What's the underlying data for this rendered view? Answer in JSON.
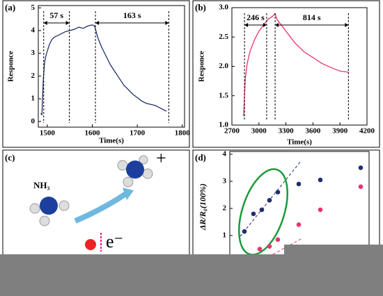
{
  "chart_data": [
    {
      "type": "line",
      "panel": "(a)",
      "xlabel": "Time(s)",
      "ylabel": "Responce",
      "color": "#1f2f6e",
      "x": [
        1485,
        1488,
        1491,
        1494,
        1497,
        1500,
        1505,
        1510,
        1515,
        1520,
        1530,
        1540,
        1550,
        1560,
        1570,
        1580,
        1590,
        1600,
        1605,
        1608,
        1612,
        1620,
        1630,
        1640,
        1650,
        1660,
        1670,
        1680,
        1690,
        1700,
        1710,
        1720,
        1730,
        1740,
        1750,
        1760,
        1765
      ],
      "values": [
        0.35,
        0.3,
        1.8,
        2.6,
        2.9,
        3.1,
        3.4,
        3.6,
        3.7,
        3.75,
        3.85,
        3.95,
        4.0,
        4.05,
        4.15,
        4.1,
        4.2,
        4.25,
        4.2,
        4.0,
        3.7,
        3.3,
        2.9,
        2.5,
        2.2,
        1.9,
        1.6,
        1.4,
        1.2,
        1.05,
        0.9,
        0.8,
        0.75,
        0.7,
        0.6,
        0.5,
        0.45
      ],
      "xlim": [
        1480,
        1805
      ],
      "ylim": [
        -0.25,
        5.1
      ],
      "xticks": [
        1500,
        1600,
        1700,
        1800
      ],
      "yticks": [
        0,
        1,
        2,
        3,
        4,
        5
      ],
      "annotations": [
        {
          "text": "57 s",
          "from": 1492,
          "to": 1549
        },
        {
          "text": "163 s",
          "from": 1607,
          "to": 1770
        }
      ]
    },
    {
      "type": "line",
      "panel": "(b)",
      "xlabel": "Time(s)",
      "ylabel": "Responce",
      "color": "#e8336e",
      "x": [
        2830,
        2840,
        2850,
        2870,
        2900,
        2950,
        3000,
        3050,
        3100,
        3150,
        3180,
        3200,
        3250,
        3300,
        3400,
        3500,
        3600,
        3700,
        3800,
        3900,
        4000
      ],
      "values": [
        1.15,
        1.5,
        1.8,
        2.05,
        2.25,
        2.45,
        2.6,
        2.7,
        2.8,
        2.85,
        2.9,
        2.8,
        2.7,
        2.6,
        2.4,
        2.25,
        2.15,
        2.05,
        1.98,
        1.92,
        1.9
      ],
      "xlim": [
        2700,
        4200
      ],
      "ylim": [
        1.0,
        3.0
      ],
      "xticks": [
        2700,
        3000,
        3300,
        3600,
        3900,
        4200
      ],
      "yticks": [
        {
          "value": 1,
          "label": "1.0"
        },
        1.5,
        {
          "value": 2,
          "label": "2.0"
        },
        2.5,
        {
          "value": 3,
          "label": "3.0"
        }
      ],
      "annotations": [
        {
          "text": "246 s",
          "from": 2840,
          "to": 3086
        },
        {
          "text": "814 s",
          "from": 3180,
          "to": 3994
        }
      ]
    },
    {
      "type": "scatter",
      "panel": "(d)",
      "ylabel": "ΔR/R₀(100%)",
      "xlim": [
        0,
        200
      ],
      "ylim": [
        -1,
        4.1
      ],
      "yticks": [
        1,
        2,
        3,
        4
      ],
      "series": [
        {
          "color": "#1f2f6e",
          "x": [
            21,
            34,
            46,
            57,
            69,
            99,
            130,
            188
          ],
          "values": [
            1.15,
            1.8,
            1.95,
            2.3,
            2.6,
            2.9,
            3.05,
            3.5
          ]
        },
        {
          "color": "#e8336e",
          "x": [
            43,
            57,
            69,
            99,
            130,
            188
          ],
          "values": [
            0.5,
            0.6,
            0.85,
            1.4,
            1.95,
            2.8
          ]
        }
      ]
    }
  ],
  "diagram": {
    "panel": "(c)",
    "molecule": "NH₃",
    "charge": "+",
    "electron": "e⁻"
  }
}
